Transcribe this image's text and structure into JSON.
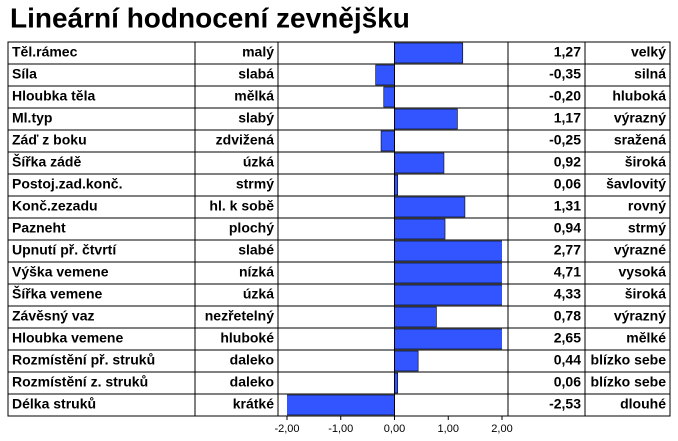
{
  "chart_data": {
    "type": "bar",
    "title": "Lineární hodnocení zevnějšku",
    "categories": [
      "Těl.rámec",
      "Síla",
      "Hloubka těla",
      "Ml.typ",
      "Záď z boku",
      "Šířka zádě",
      "Postoj.zad.konč.",
      "Konč.zezadu",
      "Pazneht",
      "Upnutí př. čtvrtí",
      "Výška vemene",
      "Šířka vemene",
      "Závěsný vaz",
      "Hloubka vemene",
      "Rozmístění  př. struků",
      "Rozmístění  z. struků",
      "Délka struků"
    ],
    "low_labels": [
      "malý",
      "slabá",
      "mělká",
      "slabý",
      "zdvižená",
      "úzká",
      "strmý",
      "hl.  k sobě",
      "plochý",
      "slabé",
      "nízká",
      "úzká",
      "nezřetelný",
      "hluboké",
      "daleko",
      "daleko",
      "krátké"
    ],
    "high_labels": [
      "velký",
      "silná",
      "hluboká",
      "výrazný",
      "sražená",
      "široká",
      "šavlovitý",
      "rovný",
      "strmý",
      "výrazné",
      "vysoká",
      "široká",
      "výrazný",
      "mělké",
      "blízko sebe",
      "blízko sebe",
      "dlouhé"
    ],
    "values": [
      1.27,
      -0.35,
      -0.2,
      1.17,
      -0.25,
      0.92,
      0.06,
      1.31,
      0.94,
      2.77,
      4.71,
      4.33,
      0.78,
      2.65,
      0.44,
      0.06,
      -2.53
    ],
    "value_labels": [
      "1,27",
      "-0,35",
      "-0,20",
      "1,17",
      "-0,25",
      "0,92",
      "0,06",
      "1,31",
      "0,94",
      "2,77",
      "4,71",
      "4,33",
      "0,78",
      "2,65",
      "0,44",
      "0,06",
      "-2,53"
    ],
    "color": "#3355ff",
    "xlim": [
      -2,
      2
    ],
    "xticks": [
      {
        "value": -2,
        "label": "-2,00"
      },
      {
        "value": -1,
        "label": "-1,00"
      },
      {
        "value": 0,
        "label": "0,00"
      },
      {
        "value": 1,
        "label": "1,00"
      },
      {
        "value": 2,
        "label": "2,00"
      }
    ]
  }
}
